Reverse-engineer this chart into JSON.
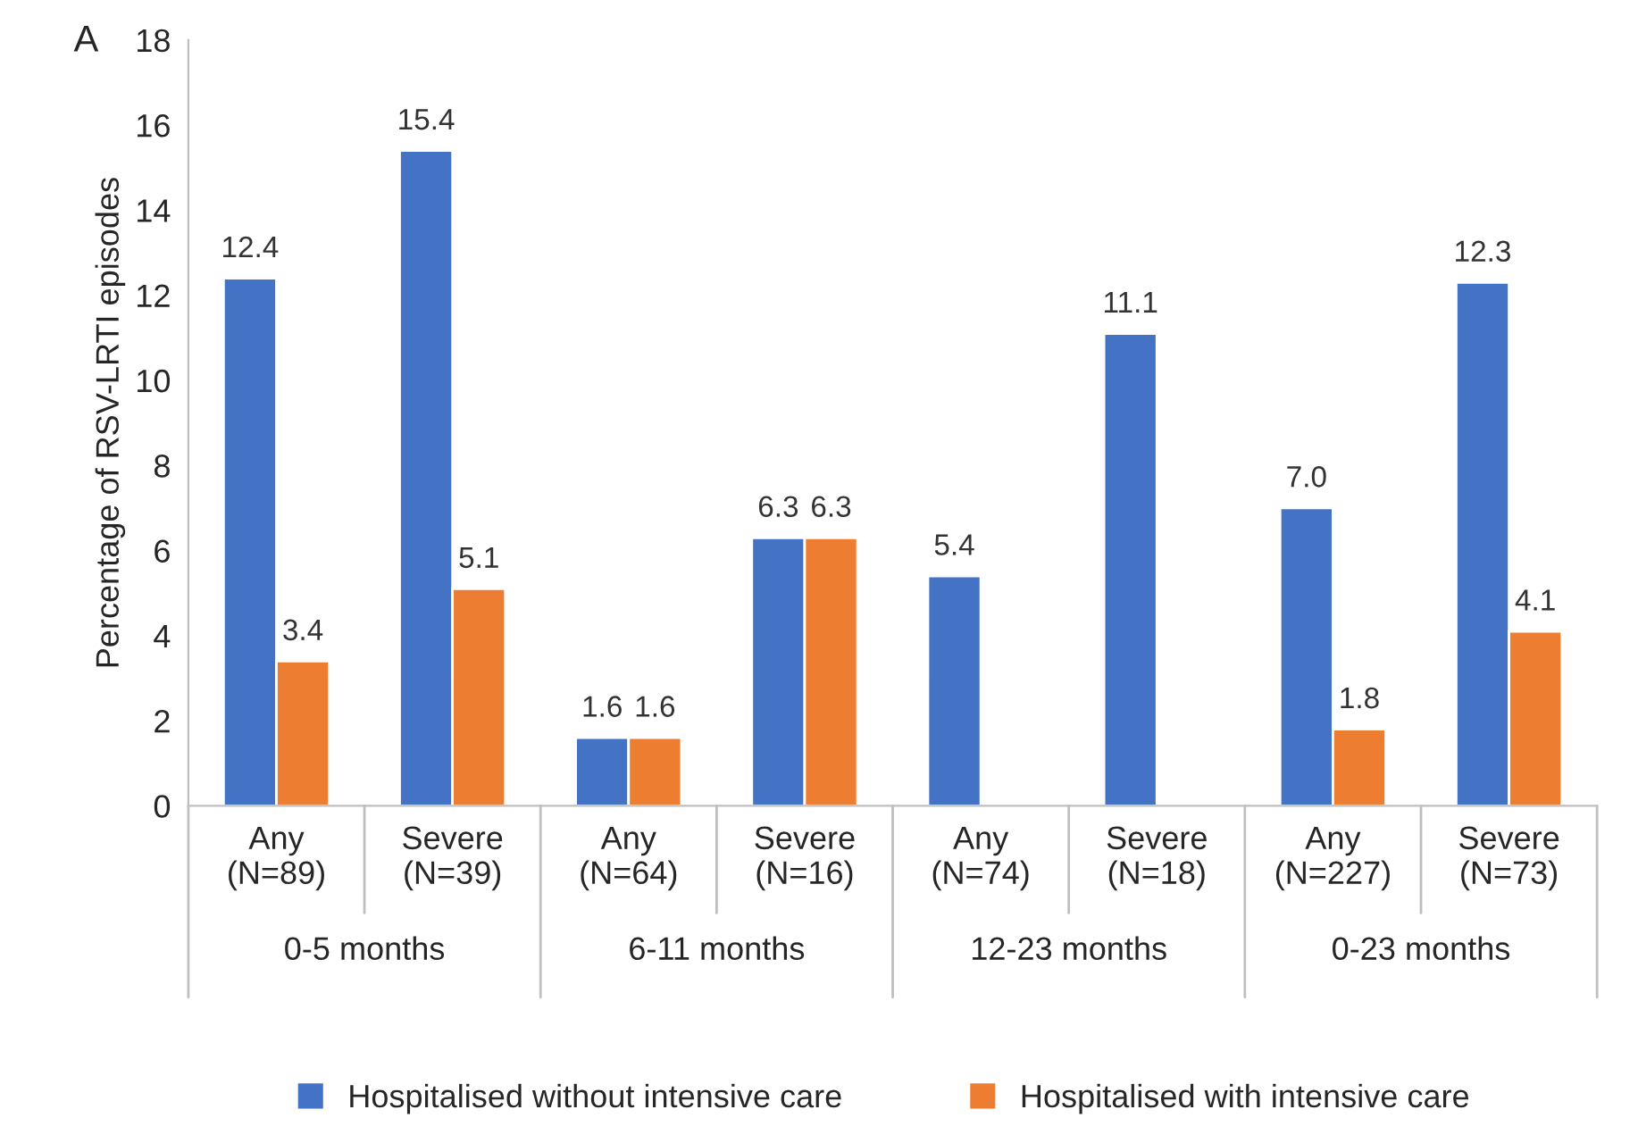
{
  "chart_data": {
    "type": "bar",
    "ylabel": "Percentage of RSV-LRTI episodes",
    "categories": [
      "Any\n(N=89)",
      "Severe\n(N=39)",
      "Any\n(N=64)",
      "Severe\n(N=16)",
      "Any\n(N=74)",
      "Severe\n(N=18)",
      "Any\n(N=227)",
      "Severe\n(N=73)"
    ],
    "series": [
      {
        "name": "Hospitalised without intensive care",
        "color": "#4472c4",
        "values": [
          12.4,
          15.4,
          1.6,
          6.3,
          5.4,
          11.1,
          7.0,
          12.3
        ],
        "value_labels": [
          "12.4",
          "15.4",
          "1.6",
          "6.3",
          "5.4",
          "11.1",
          "7.0",
          "12.3"
        ]
      },
      {
        "name": "Hospitalised with intensive care",
        "color": "#ed7d31",
        "values": [
          3.4,
          5.1,
          1.6,
          6.3,
          null,
          null,
          1.8,
          4.1
        ],
        "value_labels": [
          "3.4",
          "5.1",
          "1.6",
          "6.3",
          null,
          null,
          "1.8",
          "4.1"
        ]
      }
    ],
    "ylim": [
      0,
      18
    ],
    "yticks": [
      0,
      2,
      4,
      6,
      8,
      10,
      12,
      14,
      16,
      18
    ],
    "grid": false,
    "legend": "bottom",
    "annotations": [
      "A",
      "0-5 months",
      "6-11 months",
      "12-23 months",
      "0-23 months"
    ]
  }
}
